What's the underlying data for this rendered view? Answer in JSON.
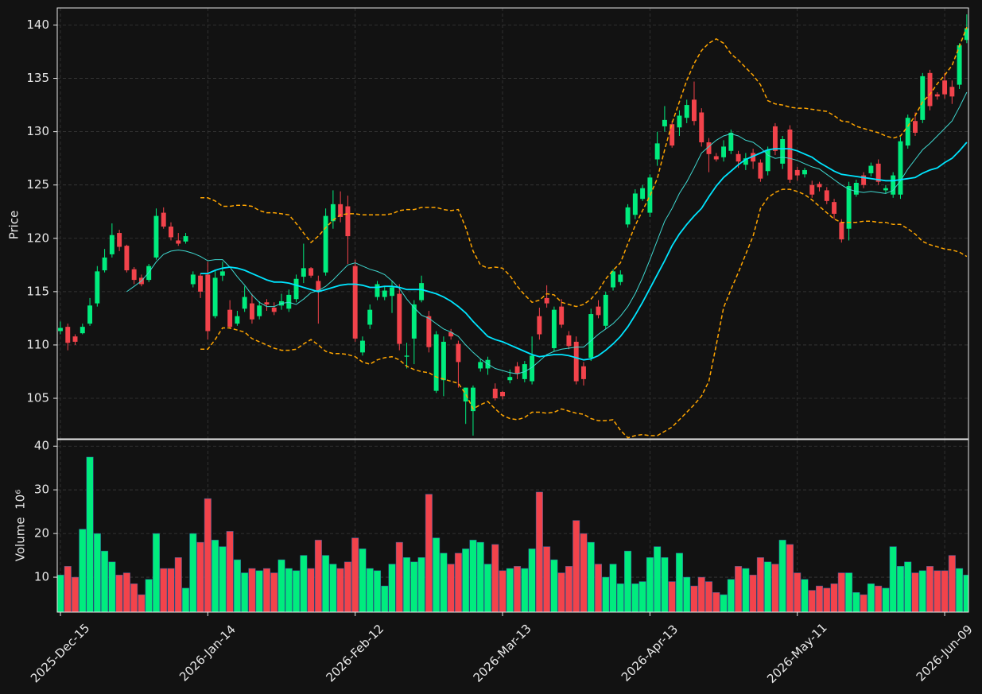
{
  "chart_data": {
    "type": "candlestick",
    "ylabel": "Price",
    "up_color": "#00ec7e",
    "down_color": "#f2434b",
    "grid": true,
    "xlim": [
      -0.43,
      123.23
    ],
    "xticks": [
      {
        "value": 0,
        "label": "2025-Dec-15"
      },
      {
        "value": 20,
        "label": "2026-Jan-14"
      },
      {
        "value": 40,
        "label": "2026-Feb-12"
      },
      {
        "value": 60,
        "label": "2026-Mar-13"
      },
      {
        "value": 80,
        "label": "2026-Apr-13"
      },
      {
        "value": 100,
        "label": "2026-May-11"
      },
      {
        "value": 120,
        "label": "2026-Jun-09"
      }
    ],
    "ylim": [
      101.2,
      141.6
    ],
    "yticks": [
      105,
      110,
      115,
      120,
      125,
      130,
      135,
      140
    ],
    "open": [
      111.3,
      111.7,
      110.8,
      111.1,
      112.0,
      113.9,
      117.0,
      118.5,
      120.5,
      119.3,
      117.1,
      116.3,
      116.1,
      118.2,
      122.4,
      121.1,
      119.8,
      119.7,
      115.7,
      116.5,
      116.6,
      112.7,
      116.5,
      113.3,
      112.0,
      113.4,
      113.9,
      112.7,
      114.0,
      113.5,
      113.7,
      113.4,
      114.3,
      116.4,
      117.2,
      116.0,
      116.8,
      121.6,
      123.2,
      123.0,
      117.4,
      109.3,
      111.9,
      114.5,
      114.5,
      114.6,
      114.8,
      108.9,
      110.6,
      114.2,
      112.7,
      105.7,
      106.7,
      111.2,
      110.1,
      104.7,
      103.8,
      107.8,
      107.8,
      105.9,
      105.6,
      106.7,
      108.0,
      106.8,
      106.6,
      112.7,
      114.4,
      109.7,
      113.6,
      110.9,
      110.3,
      108.0,
      108.8,
      113.6,
      111.8,
      115.4,
      115.9,
      121.3,
      122.2,
      123.7,
      122.4,
      127.4,
      130.5,
      130.7,
      130.4,
      131.3,
      133.0,
      131.8,
      129.0,
      127.7,
      127.6,
      128.2,
      127.9,
      126.9,
      128.0,
      127.1,
      126.3,
      130.5,
      127.0,
      130.2,
      126.4,
      126.0,
      125.0,
      125.1,
      124.5,
      123.4,
      121.5,
      120.9,
      124.1,
      125.9,
      126.1,
      127.0,
      124.5,
      124.1,
      124.1,
      128.7,
      131.0,
      131.1,
      135.5,
      133.5,
      134.8,
      134.2,
      134.4,
      138.6
    ],
    "high": [
      112.2,
      112.0,
      111.0,
      112.0,
      114.4,
      117.4,
      119.0,
      121.4,
      120.8,
      119.4,
      117.3,
      116.6,
      117.6,
      122.8,
      122.9,
      121.5,
      120.5,
      120.5,
      116.9,
      116.7,
      117.8,
      117.0,
      117.8,
      114.2,
      113.2,
      115.5,
      114.8,
      114.1,
      114.3,
      114.0,
      114.8,
      115.2,
      116.6,
      119.5,
      117.3,
      116.5,
      122.8,
      124.5,
      124.4,
      124.0,
      118.0,
      110.8,
      113.8,
      116.0,
      115.5,
      116.0,
      115.7,
      110.2,
      114.2,
      116.5,
      113.2,
      111.3,
      110.8,
      111.5,
      110.4,
      106.0,
      106.2,
      108.7,
      108.9,
      106.4,
      105.7,
      107.7,
      108.4,
      108.5,
      110.8,
      113.5,
      115.6,
      113.6,
      114.3,
      111.3,
      110.8,
      108.4,
      113.4,
      114.2,
      115.0,
      117.1,
      117.0,
      123.2,
      124.6,
      125.0,
      126.0,
      130.0,
      132.4,
      131.0,
      132.0,
      133.0,
      134.7,
      132.2,
      129.4,
      128.0,
      129.2,
      130.2,
      128.2,
      128.0,
      128.4,
      127.4,
      128.6,
      130.8,
      129.6,
      130.6,
      126.7,
      126.6,
      125.4,
      125.3,
      124.8,
      123.7,
      121.8,
      125.3,
      125.5,
      126.2,
      127.1,
      127.4,
      125.0,
      126.2,
      129.5,
      131.6,
      131.8,
      135.5,
      135.8,
      133.7,
      135.5,
      134.8,
      138.3,
      141.0
    ],
    "low": [
      111.0,
      109.5,
      110.0,
      111.0,
      111.8,
      113.6,
      116.8,
      118.2,
      118.8,
      116.8,
      115.7,
      115.5,
      115.9,
      118.0,
      120.9,
      119.8,
      119.3,
      119.5,
      115.4,
      114.4,
      110.5,
      112.5,
      116.0,
      111.5,
      111.8,
      113.1,
      112.0,
      112.4,
      113.2,
      112.8,
      113.3,
      113.1,
      114.0,
      115.8,
      116.3,
      112.0,
      116.5,
      120.9,
      121.5,
      117.6,
      110.3,
      109.0,
      111.5,
      114.2,
      114.2,
      113.0,
      109.5,
      107.8,
      108.2,
      114.0,
      109.3,
      105.5,
      105.2,
      110.5,
      106.0,
      102.6,
      101.5,
      107.5,
      107.2,
      104.8,
      104.9,
      106.4,
      106.8,
      106.5,
      106.3,
      110.5,
      113.5,
      109.4,
      111.6,
      109.6,
      106.3,
      106.2,
      108.5,
      112.5,
      111.5,
      115.1,
      115.6,
      121.0,
      121.8,
      123.5,
      122.0,
      126.8,
      130.0,
      128.5,
      129.6,
      130.8,
      130.6,
      128.6,
      126.2,
      127.2,
      127.2,
      127.9,
      126.6,
      126.4,
      126.5,
      125.3,
      125.9,
      127.8,
      126.5,
      125.2,
      125.4,
      125.7,
      123.8,
      124.4,
      123.2,
      121.8,
      119.6,
      119.8,
      123.9,
      124.7,
      125.8,
      125.0,
      124.2,
      123.8,
      123.7,
      128.4,
      129.6,
      130.8,
      132.0,
      133.0,
      133.1,
      132.6,
      134.0,
      138.3
    ],
    "close": [
      111.6,
      110.2,
      110.3,
      111.7,
      113.7,
      116.9,
      118.2,
      120.3,
      119.2,
      117.0,
      116.1,
      115.7,
      117.4,
      122.1,
      121.1,
      120.1,
      119.5,
      120.2,
      116.6,
      115.0,
      111.3,
      116.3,
      116.9,
      111.7,
      112.7,
      114.5,
      112.4,
      113.7,
      113.8,
      113.1,
      114.1,
      114.7,
      116.2,
      117.2,
      116.5,
      115.1,
      122.1,
      123.2,
      122.0,
      120.2,
      110.6,
      110.4,
      113.3,
      115.7,
      115.1,
      115.4,
      110.1,
      109.0,
      113.8,
      115.8,
      109.8,
      111.0,
      110.3,
      110.8,
      108.4,
      106.0,
      106.0,
      108.4,
      108.6,
      105.0,
      105.2,
      107.0,
      107.3,
      108.2,
      109.0,
      111.0,
      113.9,
      113.3,
      111.9,
      109.9,
      106.6,
      106.8,
      112.9,
      112.8,
      114.7,
      116.9,
      116.6,
      122.9,
      124.2,
      124.7,
      125.7,
      128.9,
      131.1,
      128.7,
      131.5,
      132.5,
      131.0,
      129.0,
      127.9,
      127.4,
      128.6,
      129.9,
      127.2,
      127.5,
      127.2,
      125.6,
      128.3,
      128.2,
      129.3,
      125.5,
      125.9,
      126.4,
      124.1,
      124.8,
      123.5,
      122.3,
      119.9,
      124.9,
      125.2,
      125.0,
      126.8,
      125.3,
      124.7,
      125.9,
      129.1,
      131.3,
      129.9,
      135.2,
      132.4,
      133.3,
      133.5,
      133.3,
      138.1,
      139.7
    ],
    "overlays": [
      {
        "color": "#3fd8d0",
        "linewidth": 1,
        "dashed": false,
        "values": [
          null,
          null,
          null,
          null,
          null,
          null,
          null,
          null,
          null,
          115.0,
          115.5,
          116.0,
          116.8,
          117.8,
          118.5,
          118.8,
          118.9,
          118.8,
          118.6,
          118.3,
          117.9,
          118.0,
          118.0,
          117.3,
          116.4,
          115.6,
          114.7,
          114.0,
          113.6,
          113.6,
          113.9,
          114.0,
          113.8,
          114.3,
          114.9,
          115.1,
          115.5,
          116.1,
          116.8,
          117.5,
          117.7,
          117.4,
          117.1,
          116.9,
          116.6,
          116.0,
          115.3,
          114.3,
          113.5,
          112.8,
          112.5,
          112.0,
          111.5,
          111.2,
          110.8,
          110.0,
          109.3,
          108.7,
          108.2,
          107.8,
          107.6,
          107.4,
          107.3,
          107.5,
          107.9,
          108.5,
          109.1,
          109.4,
          109.6,
          109.7,
          109.8,
          109.8,
          110.4,
          111.0,
          111.5,
          112.0,
          112.7,
          113.6,
          114.8,
          116.3,
          118.0,
          119.8,
          121.6,
          122.8,
          124.2,
          125.3,
          126.6,
          128.0,
          128.6,
          129.2,
          129.6,
          129.8,
          129.6,
          129.2,
          129.0,
          128.5,
          127.8,
          127.5,
          127.6,
          127.5,
          127.3,
          127.0,
          126.7,
          126.5,
          126.0,
          125.5,
          125.0,
          124.6,
          124.4,
          124.3,
          124.4,
          124.3,
          124.2,
          124.5,
          125.4,
          126.5,
          127.4,
          128.3,
          128.9,
          129.6,
          130.3,
          131.0,
          132.3,
          133.7
        ]
      },
      {
        "color": "#00e5ff",
        "linewidth": 1.8,
        "dashed": false,
        "values": [
          null,
          null,
          null,
          null,
          null,
          null,
          null,
          null,
          null,
          null,
          null,
          null,
          null,
          null,
          null,
          null,
          null,
          null,
          null,
          116.7,
          116.7,
          117.0,
          117.2,
          117.3,
          117.2,
          117.0,
          116.7,
          116.4,
          116.1,
          115.9,
          115.9,
          115.8,
          115.6,
          115.4,
          115.2,
          115.0,
          115.2,
          115.4,
          115.6,
          115.7,
          115.7,
          115.6,
          115.4,
          115.4,
          115.5,
          115.5,
          115.4,
          115.2,
          115.2,
          115.2,
          115.0,
          114.8,
          114.5,
          114.1,
          113.6,
          113.0,
          112.2,
          111.5,
          110.8,
          110.5,
          110.3,
          110.0,
          109.7,
          109.4,
          109.1,
          108.9,
          109.0,
          109.1,
          109.1,
          109.0,
          108.8,
          108.6,
          108.7,
          109.0,
          109.5,
          110.1,
          110.8,
          111.7,
          112.8,
          114.0,
          115.3,
          116.6,
          117.9,
          119.3,
          120.4,
          121.3,
          122.1,
          122.8,
          123.9,
          124.9,
          125.7,
          126.3,
          126.9,
          127.4,
          127.7,
          128.0,
          128.3,
          128.4,
          128.4,
          128.4,
          128.2,
          127.9,
          127.6,
          127.1,
          126.7,
          126.3,
          126.0,
          125.9,
          125.8,
          125.7,
          125.6,
          125.5,
          125.4,
          125.4,
          125.5,
          125.6,
          125.7,
          126.1,
          126.4,
          126.6,
          127.1,
          127.5,
          128.2,
          129.0
        ]
      },
      {
        "color": "#ffa500",
        "linewidth": 1.5,
        "dashed": true,
        "values": [
          null,
          null,
          null,
          null,
          null,
          null,
          null,
          null,
          null,
          null,
          null,
          null,
          null,
          null,
          null,
          null,
          null,
          null,
          null,
          123.8,
          123.8,
          123.5,
          123.0,
          123.0,
          123.1,
          123.1,
          123.0,
          122.6,
          122.4,
          122.4,
          122.3,
          122.2,
          121.4,
          120.5,
          119.6,
          120.2,
          121.0,
          121.7,
          122.2,
          122.3,
          122.3,
          122.2,
          122.2,
          122.2,
          122.2,
          122.3,
          122.6,
          122.7,
          122.7,
          122.9,
          122.9,
          122.9,
          122.7,
          122.6,
          122.7,
          121.0,
          118.8,
          117.5,
          117.2,
          117.3,
          117.2,
          116.5,
          115.5,
          114.7,
          114.0,
          114.2,
          114.8,
          114.7,
          114.0,
          113.8,
          113.6,
          113.8,
          114.3,
          115.1,
          116.2,
          117.0,
          117.7,
          119.5,
          121.2,
          122.6,
          124.0,
          125.6,
          128.3,
          130.8,
          132.8,
          134.8,
          136.4,
          137.6,
          138.3,
          138.7,
          138.3,
          137.3,
          136.7,
          136.0,
          135.3,
          134.4,
          132.9,
          132.6,
          132.5,
          132.3,
          132.2,
          132.2,
          132.1,
          132.0,
          131.9,
          131.5,
          131.0,
          130.9,
          130.5,
          130.3,
          130.1,
          129.9,
          129.6,
          129.4,
          129.6,
          130.5,
          131.5,
          132.8,
          133.5,
          134.5,
          135.3,
          136.2,
          138.0,
          139.8
        ]
      },
      {
        "color": "#ffa500",
        "linewidth": 1.5,
        "dashed": true,
        "values": [
          null,
          null,
          null,
          null,
          null,
          null,
          null,
          null,
          null,
          null,
          null,
          null,
          null,
          null,
          null,
          null,
          null,
          null,
          null,
          109.6,
          109.6,
          110.5,
          111.6,
          111.6,
          111.4,
          111.2,
          110.6,
          110.3,
          110.0,
          109.7,
          109.5,
          109.5,
          109.6,
          110.1,
          110.5,
          110.0,
          109.4,
          109.2,
          109.2,
          109.1,
          108.9,
          108.4,
          108.2,
          108.6,
          108.8,
          108.9,
          108.6,
          108.0,
          107.7,
          107.5,
          107.4,
          107.0,
          106.8,
          106.6,
          106.4,
          105.4,
          104.0,
          104.4,
          104.7,
          104.0,
          103.4,
          103.1,
          103.0,
          103.2,
          103.7,
          103.7,
          103.6,
          103.7,
          104.0,
          103.8,
          103.6,
          103.5,
          103.1,
          102.9,
          102.9,
          103.0,
          102.0,
          101.3,
          101.5,
          101.6,
          101.5,
          101.5,
          101.9,
          102.3,
          103.0,
          103.7,
          104.4,
          105.2,
          106.6,
          110.0,
          113.5,
          115.2,
          116.8,
          118.5,
          120.2,
          122.8,
          123.8,
          124.3,
          124.6,
          124.6,
          124.4,
          124.1,
          123.6,
          123.0,
          122.4,
          121.8,
          121.5,
          121.5,
          121.5,
          121.6,
          121.6,
          121.5,
          121.5,
          121.3,
          121.3,
          120.9,
          120.4,
          119.7,
          119.4,
          119.2,
          119.0,
          118.9,
          118.7,
          118.3
        ]
      }
    ],
    "volume": {
      "ylabel": "Volume  10⁶",
      "ylim": [
        2,
        41.5
      ],
      "yticks": [
        10,
        20,
        30,
        40
      ],
      "values": [
        10.5,
        12.5,
        10,
        21,
        37.5,
        20,
        16,
        13.5,
        10.5,
        11,
        8.5,
        6,
        9.5,
        20,
        12,
        12,
        14.5,
        7.5,
        20,
        18,
        28,
        18.5,
        17,
        20.5,
        14,
        11,
        12,
        11.5,
        12,
        11,
        14,
        12,
        11.5,
        15,
        12,
        18.5,
        15,
        13,
        12,
        13.5,
        19,
        16.5,
        12,
        11.5,
        8,
        13,
        18,
        14.5,
        13.5,
        14.5,
        29,
        19,
        15.5,
        13,
        15.5,
        16.5,
        18.5,
        18,
        13,
        17.5,
        11.5,
        12,
        12.5,
        12,
        16.5,
        29.5,
        17,
        14,
        11,
        12.5,
        23,
        20,
        18,
        13,
        10,
        13,
        8.5,
        16,
        8.5,
        9,
        14.5,
        17,
        14.5,
        9,
        15.5,
        10,
        8,
        10,
        9,
        6.5,
        6,
        9.5,
        12.5,
        12,
        10.5,
        14.5,
        13.5,
        13,
        18.5,
        17.5,
        11,
        9.5,
        7,
        8,
        7.5,
        8.5,
        11,
        11,
        6.5,
        6,
        8.5,
        8,
        7.5,
        17,
        12.5,
        13.5,
        11,
        11.5,
        12.5,
        11.5,
        11.5,
        15,
        12,
        10.5
      ]
    }
  }
}
